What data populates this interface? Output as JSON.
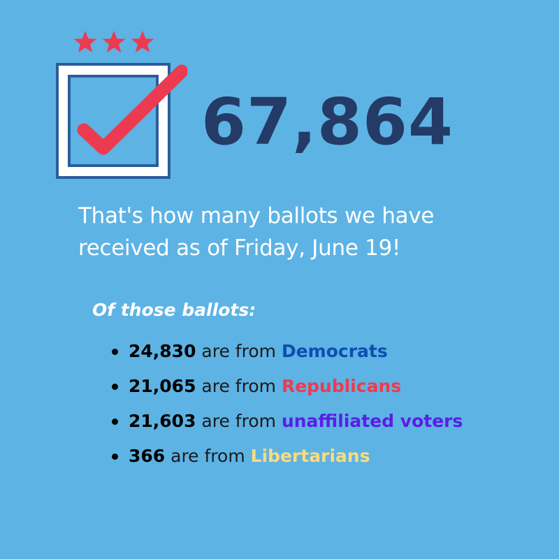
{
  "headline": {
    "total": "67,864",
    "intro_line1": "That's how many ballots we have",
    "intro_line2": "received as of Friday, June 19!"
  },
  "breakdown": {
    "heading": "Of those ballots:",
    "items": [
      {
        "count": "24,830",
        "middle": " are from ",
        "group": "Democrats",
        "color": "#0b4fb3"
      },
      {
        "count": "21,065",
        "middle": " are from ",
        "group": "Republicans",
        "color": "#ec3b50"
      },
      {
        "count": "21,603",
        "middle": " are from ",
        "group": "unaffiliated voters",
        "color": "#5a1ee6"
      },
      {
        "count": "366",
        "middle": " are from ",
        "group": "Libertarians",
        "color": "#f8dc7e"
      }
    ]
  },
  "icons": {
    "stars": "three-stars-icon",
    "check": "checkbox-check-icon"
  },
  "colors": {
    "background": "#5db3e4",
    "headline": "#233b66",
    "accent_red": "#ec3b50",
    "box_stroke": "#2a5d9b"
  }
}
